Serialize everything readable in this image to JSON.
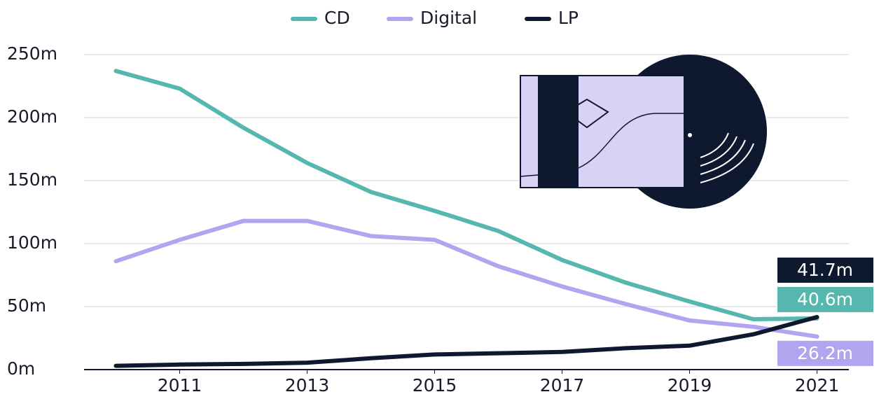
{
  "chart_data": {
    "type": "line",
    "x": [
      2010,
      2011,
      2012,
      2013,
      2014,
      2015,
      2016,
      2017,
      2018,
      2019,
      2020,
      2021
    ],
    "series": [
      {
        "name": "CD",
        "color": "#55b7ad",
        "values": [
          237,
          223,
          192,
          164,
          141,
          126,
          110,
          87,
          69,
          54,
          40,
          40.6
        ],
        "value_labels": [
          null,
          null,
          null,
          null,
          null,
          null,
          null,
          null,
          null,
          null,
          null,
          "40.6m"
        ]
      },
      {
        "name": "Digital",
        "color": "#b2a5f0",
        "values": [
          86,
          103,
          118,
          118,
          106,
          103,
          82,
          66,
          52,
          39,
          34,
          26.2
        ],
        "value_labels": [
          null,
          null,
          null,
          null,
          null,
          null,
          null,
          null,
          null,
          null,
          null,
          "26.2m"
        ]
      },
      {
        "name": "LP",
        "color": "#0e1930",
        "values": [
          3,
          4,
          4.5,
          5.5,
          9,
          12,
          13,
          14,
          17,
          19,
          28,
          41.7
        ],
        "value_labels": [
          null,
          null,
          null,
          null,
          null,
          null,
          null,
          null,
          null,
          null,
          null,
          "41.7m"
        ]
      }
    ],
    "xlim": [
      2009.5,
      2021.5
    ],
    "xticks": [
      2011,
      2013,
      2015,
      2017,
      2019,
      2021
    ],
    "ylim": [
      0,
      250
    ],
    "yticks": [
      {
        "value": 0,
        "label": "0m"
      },
      {
        "value": 50,
        "label": "50m"
      },
      {
        "value": 100,
        "label": "100m"
      },
      {
        "value": 150,
        "label": "150m"
      },
      {
        "value": 200,
        "label": "200m"
      },
      {
        "value": 250,
        "label": "250m"
      }
    ],
    "grid": true,
    "legend": "top"
  }
}
